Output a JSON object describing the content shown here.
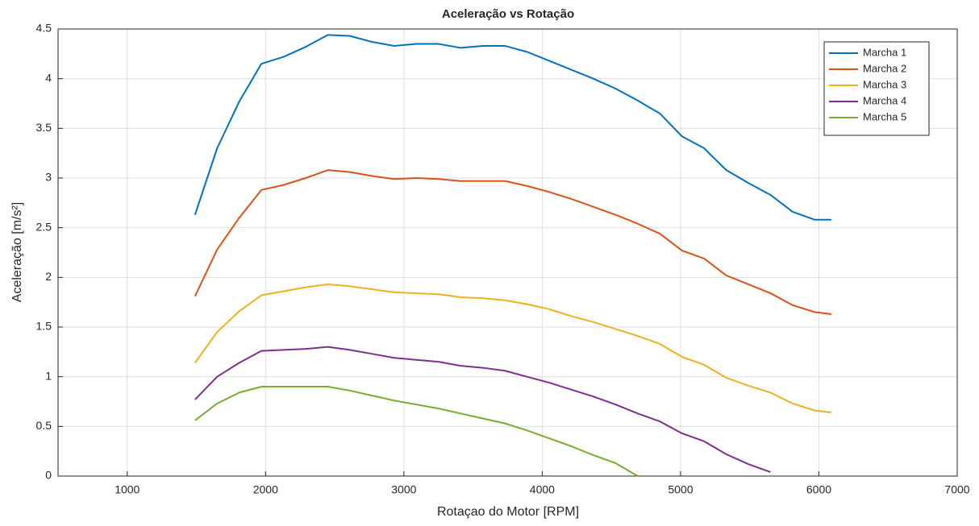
{
  "chart_data": {
    "type": "line",
    "title": "Aceleração vs Rotação",
    "xlabel": "Rotaçao do Motor [RPM]",
    "ylabel": "Aceleração [m/s²]",
    "x": [
      1490,
      1650,
      1810,
      1970,
      2130,
      2290,
      2450,
      2610,
      2770,
      2930,
      3090,
      3250,
      3410,
      3570,
      3730,
      3890,
      4050,
      4210,
      4370,
      4530,
      4690,
      4850,
      5010,
      5170,
      5330,
      5490,
      5650,
      5810,
      5970,
      6090
    ],
    "series": [
      {
        "name": "Marcha 1",
        "color": "#0072bd",
        "values": [
          2.63,
          3.3,
          3.77,
          4.15,
          4.22,
          4.32,
          4.44,
          4.43,
          4.37,
          4.33,
          4.35,
          4.35,
          4.31,
          4.33,
          4.33,
          4.27,
          4.18,
          4.09,
          4.0,
          3.9,
          3.78,
          3.65,
          3.42,
          3.3,
          3.08,
          2.95,
          2.83,
          2.66,
          2.58,
          2.58
        ]
      },
      {
        "name": "Marcha 2",
        "color": "#d95319",
        "values": [
          1.81,
          2.28,
          2.6,
          2.88,
          2.93,
          3.0,
          3.08,
          3.06,
          3.02,
          2.99,
          3.0,
          2.99,
          2.97,
          2.97,
          2.97,
          2.92,
          2.86,
          2.79,
          2.71,
          2.63,
          2.54,
          2.44,
          2.27,
          2.19,
          2.02,
          1.93,
          1.84,
          1.72,
          1.65,
          1.63
        ]
      },
      {
        "name": "Marcha 3",
        "color": "#edb120",
        "values": [
          1.14,
          1.45,
          1.66,
          1.82,
          1.86,
          1.9,
          1.93,
          1.91,
          1.88,
          1.85,
          1.84,
          1.83,
          1.8,
          1.79,
          1.77,
          1.73,
          1.68,
          1.61,
          1.55,
          1.48,
          1.41,
          1.33,
          1.2,
          1.12,
          0.99,
          0.91,
          0.84,
          0.73,
          0.66,
          0.64
        ]
      },
      {
        "name": "Marcha 4",
        "color": "#7e2f8e",
        "values": [
          0.77,
          1.0,
          1.14,
          1.26,
          1.27,
          1.28,
          1.3,
          1.27,
          1.23,
          1.19,
          1.17,
          1.15,
          1.11,
          1.09,
          1.06,
          1.0,
          0.94,
          0.87,
          0.8,
          0.72,
          0.63,
          0.55,
          0.43,
          0.35,
          0.22,
          0.12,
          0.04,
          null,
          null,
          null
        ]
      },
      {
        "name": "Marcha 5",
        "color": "#77ac30",
        "values": [
          0.56,
          0.73,
          0.84,
          0.9,
          0.9,
          0.9,
          0.9,
          0.86,
          0.81,
          0.76,
          0.72,
          0.68,
          0.63,
          0.58,
          0.53,
          0.46,
          0.38,
          0.3,
          0.21,
          0.13,
          0.0,
          null,
          null,
          null,
          null,
          null,
          null,
          null,
          null,
          null
        ]
      }
    ],
    "xlim": [
      500,
      7000
    ],
    "xticks": [
      1000,
      2000,
      3000,
      4000,
      5000,
      6000,
      7000
    ],
    "ylim": [
      0,
      4.5
    ],
    "yticks": [
      0,
      0.5,
      1,
      1.5,
      2,
      2.5,
      3,
      3.5,
      4,
      4.5
    ],
    "grid": true,
    "legend": "northeast"
  }
}
